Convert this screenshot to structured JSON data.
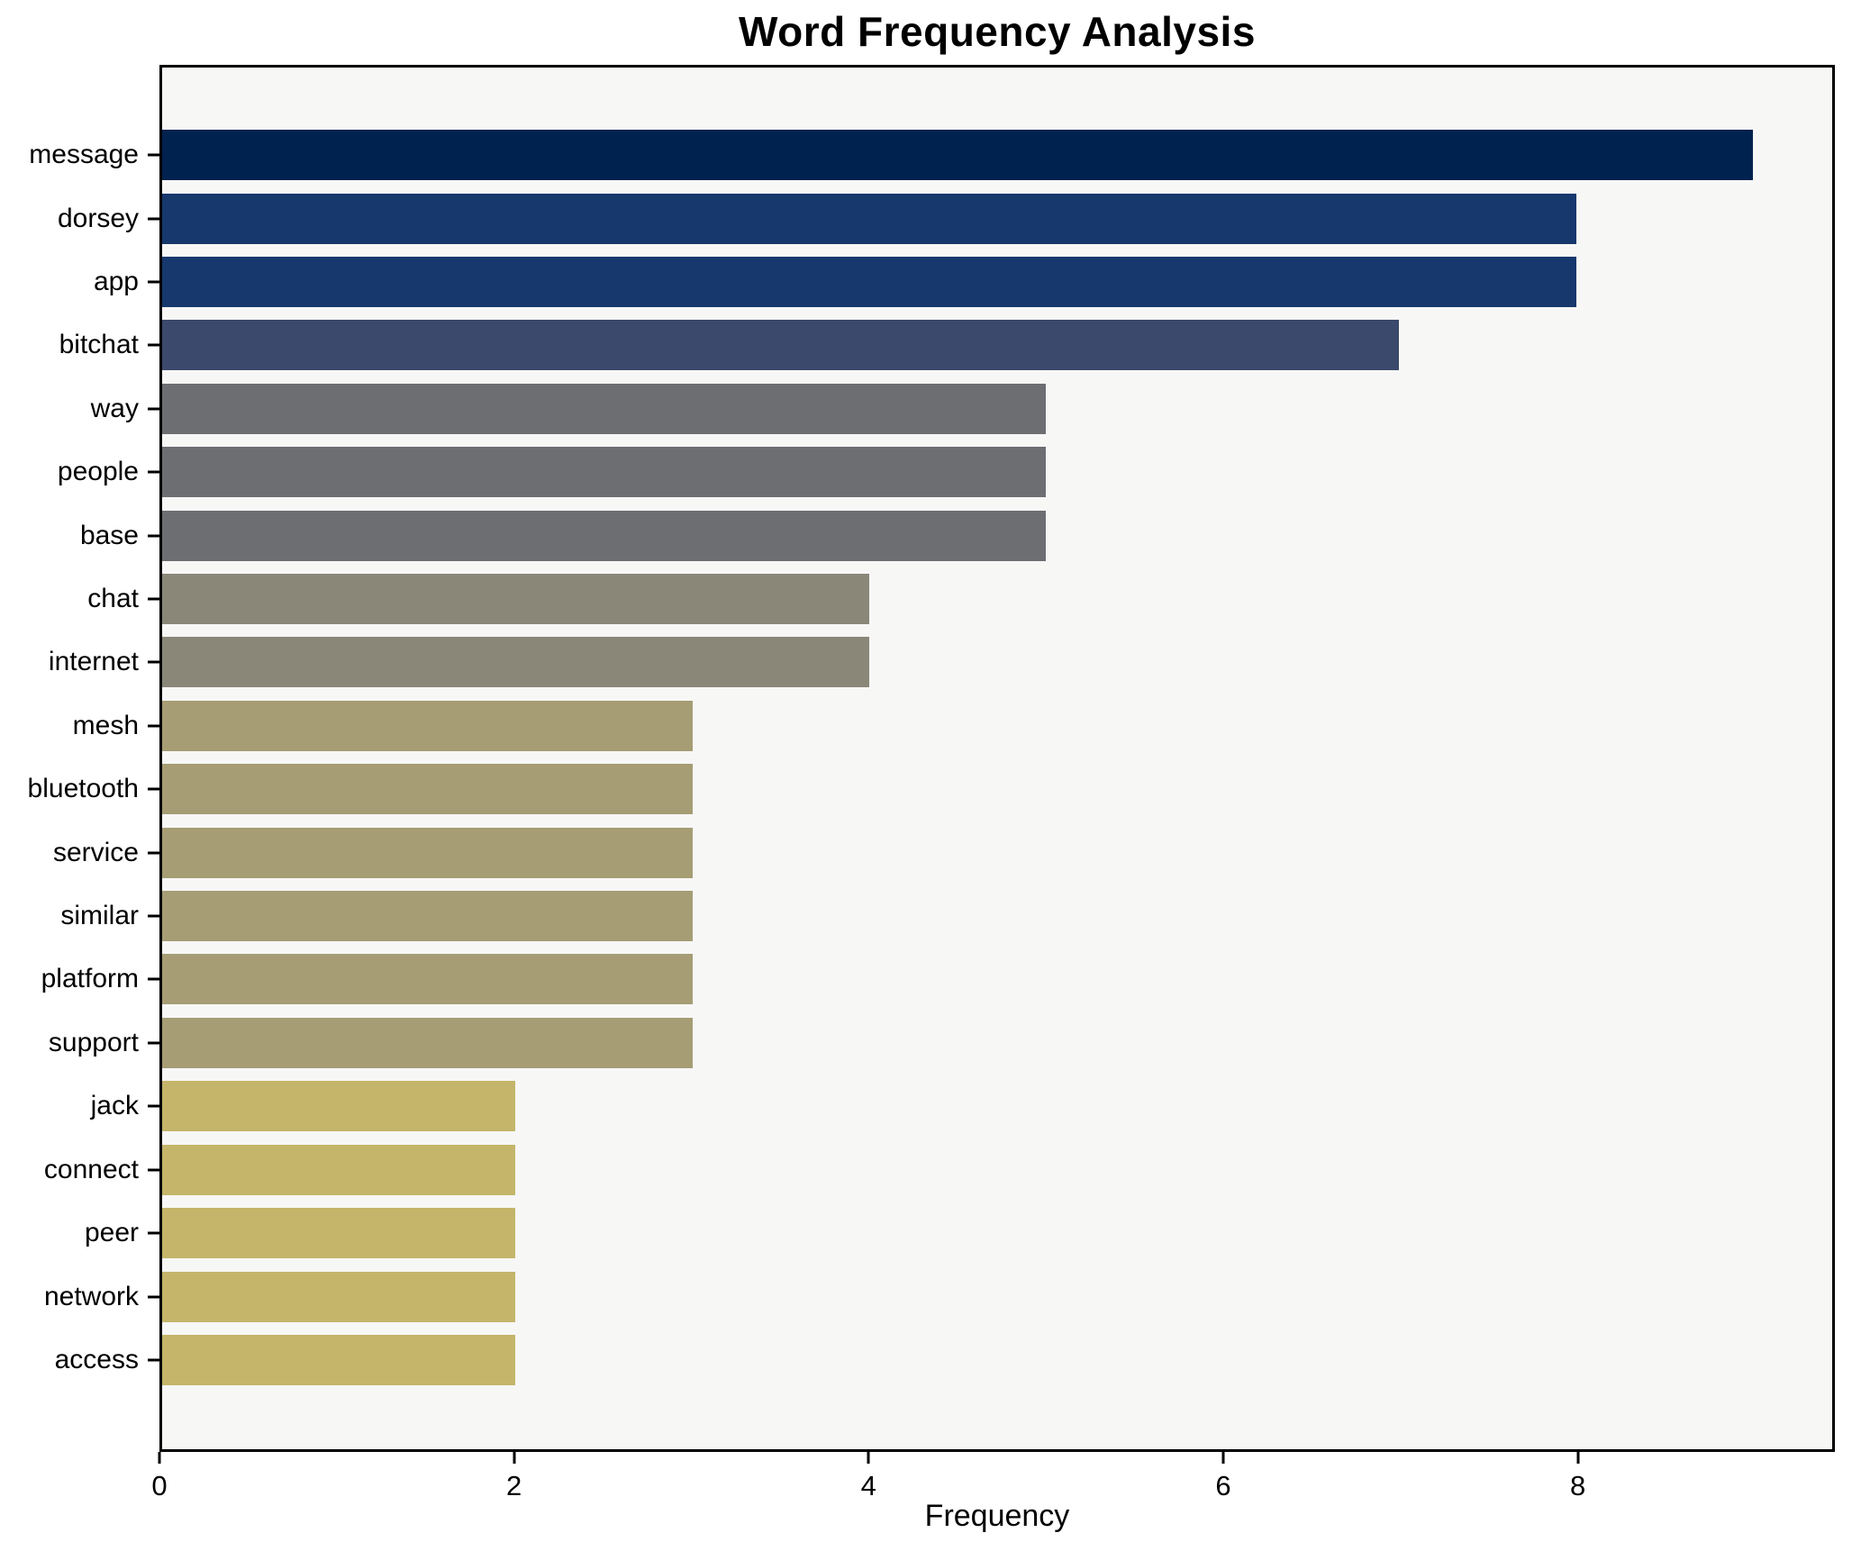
{
  "chart_data": {
    "type": "bar",
    "orientation": "horizontal",
    "title": "Word Frequency Analysis",
    "xlabel": "Frequency",
    "ylabel": "",
    "xlim": [
      0,
      9.45
    ],
    "xticks": [
      0,
      2,
      4,
      6,
      8
    ],
    "grid": false,
    "legend": null,
    "plot_background": "#f7f7f6",
    "categories": [
      "message",
      "dorsey",
      "app",
      "bitchat",
      "way",
      "people",
      "base",
      "chat",
      "internet",
      "mesh",
      "bluetooth",
      "service",
      "similar",
      "platform",
      "support",
      "jack",
      "connect",
      "peer",
      "network",
      "access"
    ],
    "values": [
      9,
      8,
      8,
      7,
      5,
      5,
      5,
      4,
      4,
      3,
      3,
      3,
      3,
      3,
      3,
      2,
      2,
      2,
      2,
      2
    ],
    "colors": [
      "#00224e",
      "#16386d",
      "#16386d",
      "#3b496c",
      "#6c6e72",
      "#6c6e72",
      "#6c6e72",
      "#8a8779",
      "#8a8779",
      "#a69d75",
      "#a69d75",
      "#a69d75",
      "#a69d75",
      "#a69d75",
      "#a69d75",
      "#c4b56a",
      "#c4b56a",
      "#c4b56a",
      "#c4b56a",
      "#c4b56a"
    ]
  }
}
